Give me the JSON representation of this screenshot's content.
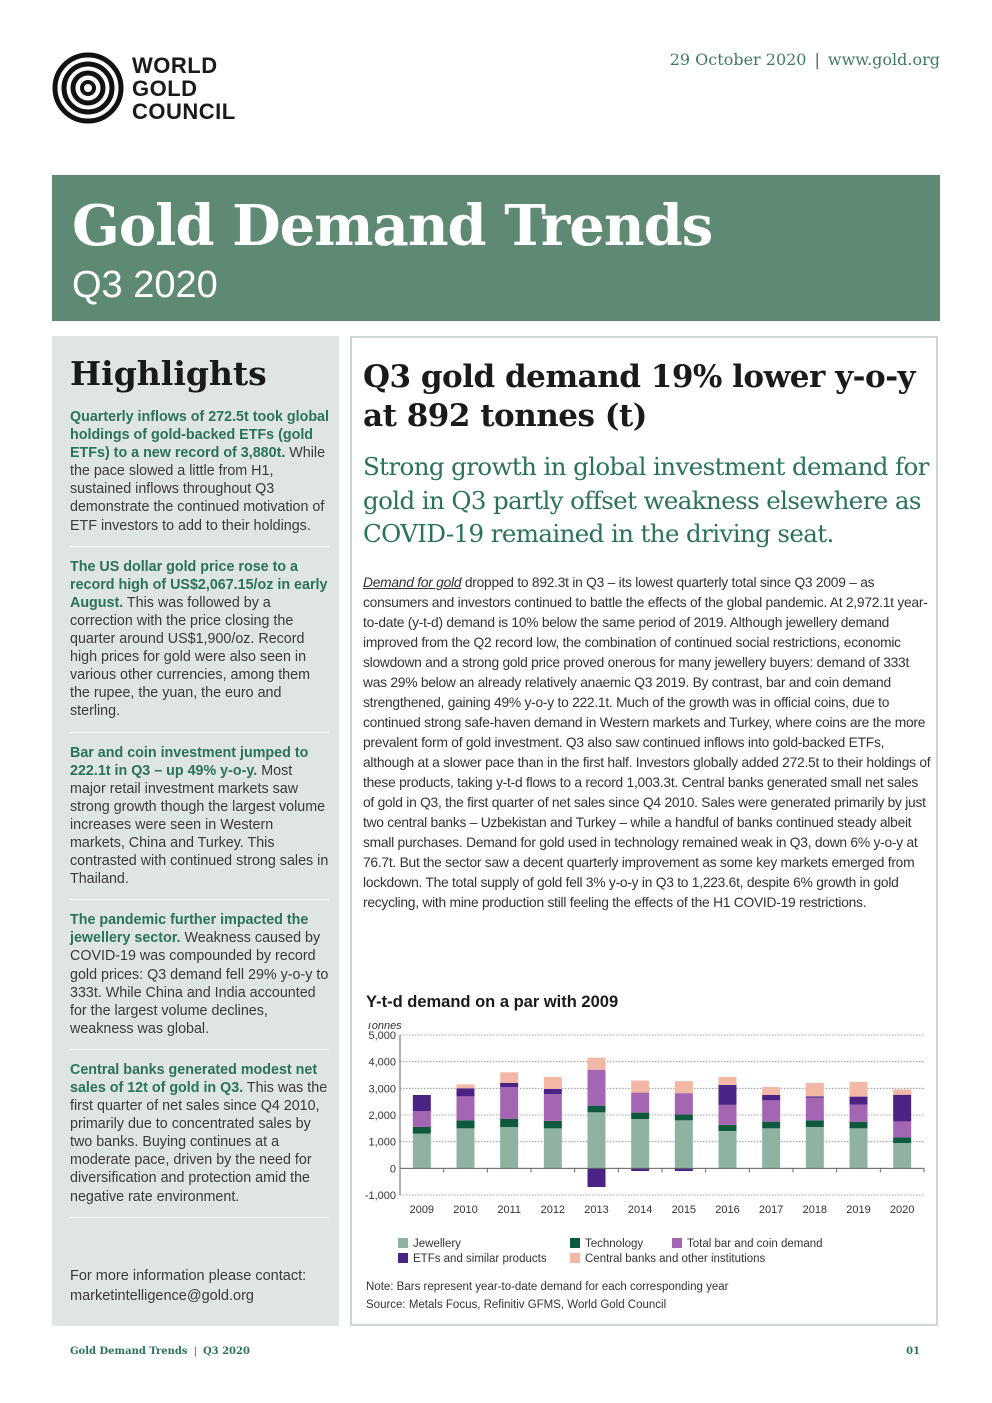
{
  "header": {
    "logo_lines": [
      "WORLD",
      "GOLD",
      "COUNCIL"
    ],
    "date": "29 October 2020",
    "url": "www.gold.org"
  },
  "banner": {
    "title": "Gold Demand Trends",
    "subtitle": "Q3 2020"
  },
  "highlights": {
    "title": "Highlights",
    "items": [
      {
        "lead": "Quarterly inflows of 272.5t took global holdings of gold-backed ETFs (gold ETFs) to a new record of 3,880t.",
        "text": " While the pace slowed a little from H1, sustained inflows throughout Q3 demonstrate the continued motivation of ETF investors to add to their holdings."
      },
      {
        "lead": "The US dollar gold price rose to a record high of US$2,067.15/oz in early August.",
        "text": " This was followed by a correction with the price closing the quarter around US$1,900/oz. Record high prices for gold were also seen in various other currencies, among them the rupee, the yuan, the euro and sterling."
      },
      {
        "lead": "Bar and coin investment jumped to 222.1t in Q3 – up 49% y-o-y.",
        "text": " Most major retail investment markets saw strong growth though the largest volume increases were seen in Western markets, China and Turkey. This contrasted with continued strong sales in Thailand."
      },
      {
        "lead": "The pandemic further impacted the jewellery sector.",
        "text": " Weakness caused by COVID-19 was compounded by record gold prices: Q3 demand fell 29% y-o-y to 333t. While China and India accounted for the largest volume declines, weakness was global."
      },
      {
        "lead": "Central banks generated modest net sales of 12t of gold in Q3.",
        "text": " This was the first quarter of net sales since Q4 2010, primarily due to concentrated sales by two banks. Buying continues at a moderate pace, driven by the need for diversification and protection amid the negative rate environment."
      }
    ],
    "contact_text": "For more information please contact:",
    "contact_email": "marketintelligence@gold.org"
  },
  "main": {
    "headline": "Q3 gold demand 19% lower y-o-y at 892 tonnes (t)",
    "subheadline": "Strong growth in global investment demand for gold in Q3 partly offset weakness elsewhere as COVID-19 remained in the driving seat.",
    "body_link": "Demand for gold",
    "body": " dropped to 892.3t in Q3 – its lowest quarterly total since Q3 2009 – as consumers and investors continued to battle the effects of the global pandemic. At 2,972.1t year-to-date (y-t-d) demand is 10% below the same period of 2019. Although jewellery demand improved from the Q2 record low, the combination of continued social restrictions, economic slowdown and a strong gold price proved onerous for many jewellery buyers: demand of 333t was 29% below an already relatively anaemic Q3 2019. By contrast, bar and coin demand strengthened, gaining 49% y-o-y to 222.1t. Much of the growth was in official coins, due to continued strong safe-haven demand in Western markets and Turkey, where coins are the more prevalent form of gold investment. Q3 also saw continued inflows into gold-backed ETFs, although at a slower pace than in the first half. Investors globally added 272.5t to their holdings of these products, taking y-t-d flows to a record 1,003.3t. Central banks generated small net sales of gold in Q3, the first quarter of net sales since Q4 2010. Sales were generated primarily by just two central banks – Uzbekistan and Turkey – while a handful of banks continued steady albeit small purchases. Demand for gold used in technology remained weak in Q3, down 6% y-o-y at 76.7t. But the sector saw a decent quarterly improvement as some key markets emerged from lockdown. The total supply of gold fell 3% y-o-y in Q3 to 1,223.6t, despite 6% growth in gold recycling, with mine production still feeling the effects of the H1 COVID-19 restrictions."
  },
  "chart_data": {
    "type": "bar",
    "stacked": true,
    "title": "Y-t-d demand on a par with 2009",
    "ylabel": "Tonnes",
    "xlabel": "",
    "ylim": [
      -1000,
      5000
    ],
    "yticks": [
      "5,000",
      "4,000",
      "3,000",
      "2,000",
      "1,000",
      "0",
      "-1,000"
    ],
    "ytick_values": [
      5000,
      4000,
      3000,
      2000,
      1000,
      0,
      -1000
    ],
    "grid": true,
    "legend_position": "bottom",
    "categories": [
      "2009",
      "2010",
      "2011",
      "2012",
      "2013",
      "2014",
      "2015",
      "2016",
      "2017",
      "2018",
      "2019",
      "2020"
    ],
    "series": [
      {
        "name": "Jewellery",
        "color": "#8fb3a0",
        "values": [
          1300,
          1500,
          1550,
          1500,
          2100,
          1850,
          1800,
          1400,
          1500,
          1550,
          1500,
          950
        ]
      },
      {
        "name": "Technology",
        "color": "#0e5a3c",
        "values": [
          250,
          300,
          300,
          280,
          250,
          240,
          220,
          230,
          250,
          250,
          240,
          210
        ]
      },
      {
        "name": "Total bar and coin demand",
        "color": "#a466b3",
        "values": [
          600,
          900,
          1200,
          1000,
          1350,
          750,
          800,
          750,
          800,
          850,
          650,
          600
        ]
      },
      {
        "name": "ETFs and similar products",
        "color": "#4b2384",
        "values": [
          600,
          300,
          150,
          200,
          -700,
          -100,
          -100,
          750,
          200,
          50,
          300,
          1000
        ]
      },
      {
        "name": "Central banks and other institutions",
        "color": "#f2b7a5",
        "values": [
          0,
          150,
          400,
          450,
          450,
          450,
          450,
          300,
          300,
          500,
          550,
          200
        ]
      }
    ],
    "note": "Note: Bars represent year-to-date demand for each corresponding year",
    "source": "Source: Metals Focus, Refinitiv GFMS, World Gold Council"
  },
  "footer": {
    "left": "Gold Demand Trends",
    "right": "Q3 2020",
    "page": "01"
  }
}
